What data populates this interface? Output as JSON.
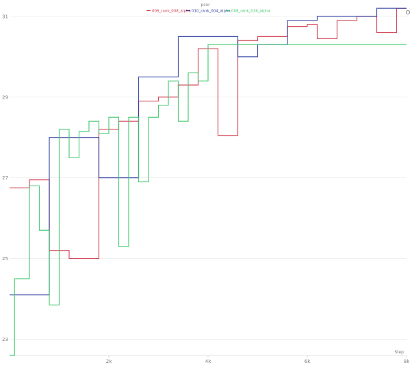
{
  "chart_data": {
    "type": "line",
    "title": "psnr",
    "xlabel": "Step",
    "ylabel": "",
    "xlim": [
      0,
      8000
    ],
    "ylim": [
      22.6,
      31.1
    ],
    "x_ticks": [
      2000,
      4000,
      6000,
      8000
    ],
    "x_tick_labels": [
      "2k",
      "4k",
      "6k",
      "8k"
    ],
    "y_ticks": [
      23,
      25,
      27,
      29,
      31
    ],
    "y_tick_labels": [
      "23",
      "25",
      "27",
      "29",
      "31"
    ],
    "grid": true,
    "step_style": true,
    "legend_position": "top-center",
    "series": [
      {
        "name": "006_rank_008_alpha",
        "color": "#d03a4c",
        "x": [
          0,
          200,
          400,
          600,
          800,
          1000,
          1200,
          1400,
          1600,
          1800,
          2000,
          2200,
          2400,
          2600,
          2800,
          3000,
          3200,
          3400,
          3600,
          3800,
          4000,
          4200,
          4400,
          4600,
          4800,
          5000,
          5200,
          5400,
          5600,
          5800,
          6000,
          6200,
          6400,
          6600,
          6800,
          7000,
          7200,
          7400,
          7600,
          7800,
          8000
        ],
        "y": [
          26.75,
          26.75,
          26.95,
          26.95,
          25.2,
          25.2,
          25.0,
          25.0,
          25.0,
          28.2,
          28.2,
          28.4,
          28.4,
          28.9,
          28.9,
          29.0,
          29.0,
          29.3,
          29.3,
          30.2,
          30.2,
          28.05,
          28.05,
          30.4,
          30.4,
          30.5,
          30.5,
          30.5,
          30.75,
          30.75,
          30.8,
          30.45,
          30.45,
          30.9,
          30.9,
          31.0,
          31.0,
          30.6,
          30.6,
          31.2,
          31.2
        ]
      },
      {
        "name": "010_rank_004_alpha",
        "color": "#2c3d9e",
        "x": [
          0,
          200,
          400,
          600,
          800,
          1000,
          1200,
          1400,
          1600,
          1800,
          2000,
          2200,
          2400,
          2600,
          2800,
          3000,
          3200,
          3400,
          3600,
          3800,
          4000,
          4200,
          4400,
          4600,
          4800,
          5000,
          5200,
          5400,
          5600,
          5800,
          6000,
          6200,
          6400,
          6600,
          6800,
          7000,
          7200,
          7400,
          7600,
          7800,
          8000
        ],
        "y": [
          24.1,
          24.1,
          24.1,
          24.1,
          28.0,
          28.0,
          28.0,
          28.0,
          28.0,
          27.0,
          27.0,
          27.0,
          27.0,
          29.5,
          29.5,
          29.5,
          29.5,
          30.5,
          30.5,
          30.5,
          30.5,
          30.5,
          30.5,
          30.0,
          30.0,
          30.3,
          30.3,
          30.3,
          30.9,
          30.9,
          30.9,
          31.0,
          31.0,
          31.0,
          31.0,
          31.0,
          31.0,
          31.2,
          31.2,
          31.2,
          31.2
        ]
      },
      {
        "name": "008_rank_016_alpha",
        "color": "#3dc76a",
        "x": [
          0,
          100,
          200,
          400,
          600,
          800,
          1000,
          1200,
          1400,
          1600,
          1800,
          2000,
          2200,
          2400,
          2600,
          2800,
          3000,
          3200,
          3400,
          3600,
          3800,
          4000,
          4200,
          4400,
          4600,
          4800,
          5000,
          5200,
          5400,
          5600,
          5800,
          6000,
          6200,
          6400,
          6600,
          6800,
          7000,
          7200,
          7400,
          7600,
          7800,
          8000
        ],
        "y": [
          22.5,
          24.5,
          24.5,
          26.8,
          25.7,
          23.85,
          28.2,
          27.5,
          28.15,
          28.4,
          28.1,
          28.5,
          25.3,
          28.5,
          26.9,
          28.5,
          28.8,
          29.4,
          28.4,
          29.6,
          29.4,
          30.3,
          30.3,
          30.3,
          30.3,
          30.3,
          30.3,
          30.3,
          30.3,
          30.3,
          30.3,
          30.3,
          30.3,
          30.3,
          30.3,
          30.3,
          30.3,
          30.3,
          30.3,
          30.3,
          30.3,
          30.3
        ]
      }
    ]
  }
}
